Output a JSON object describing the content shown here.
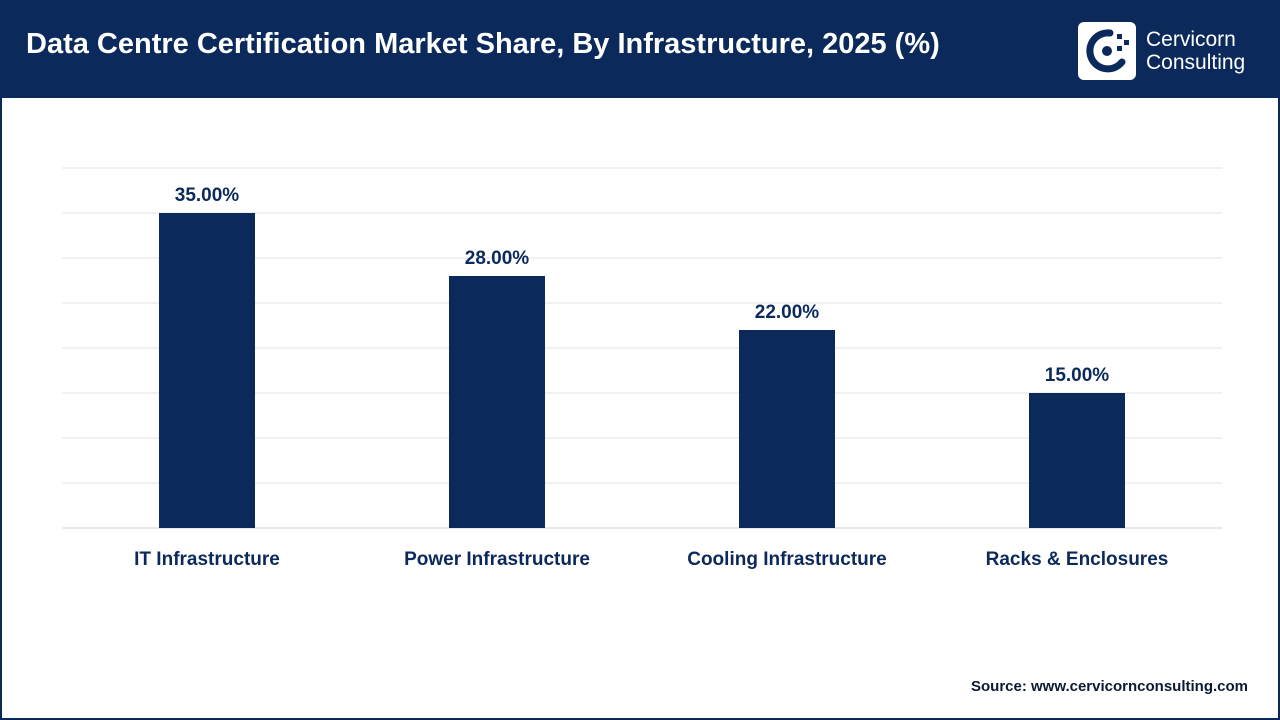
{
  "header": {
    "title": "Data Centre Certification Market Share, By Infrastructure, 2025 (%)",
    "logo_line1": "Cervicorn",
    "logo_line2": "Consulting"
  },
  "colors": {
    "brand": "#0b2a5b",
    "bar": "#0b2a5b",
    "grid": "#e3e3e3",
    "text": "#0b2a5b"
  },
  "chart_data": {
    "type": "bar",
    "categories": [
      "IT Infrastructure",
      "Power Infrastructure",
      "Cooling Infrastructure",
      "Racks & Enclosures"
    ],
    "values": [
      35,
      28,
      22,
      15
    ],
    "data_labels": [
      "35.00%",
      "28.00%",
      "22.00%",
      "15.00%"
    ],
    "ylim": [
      0,
      40
    ],
    "grid": true,
    "legend": "none",
    "xlabel": "",
    "ylabel": ""
  },
  "footer": {
    "source": "Source: www.cervicornconsulting.com"
  }
}
